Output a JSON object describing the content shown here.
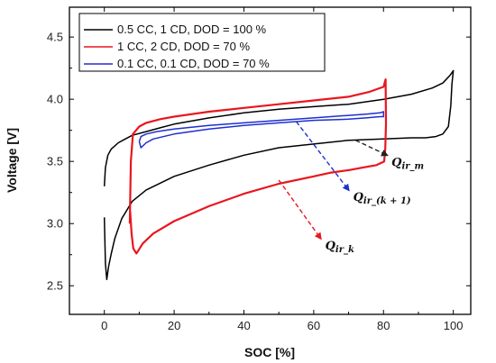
{
  "chart_data": {
    "type": "line",
    "xlabel": "SOC [%]",
    "ylabel": "Voltage [V]",
    "xlim": [
      -10,
      105
    ],
    "ylim": [
      2.27,
      4.74
    ],
    "x_ticks": [
      0,
      20,
      40,
      60,
      80,
      100
    ],
    "y_ticks": [
      2.5,
      3.0,
      3.5,
      4.0,
      4.5
    ],
    "grid": false,
    "legend_position": "top-left",
    "series": [
      {
        "name": "0.5 CC, 1 CD, DOD = 100 %",
        "color": "#000000",
        "x": [
          0,
          0.3,
          1,
          2,
          4,
          6,
          8,
          12,
          16,
          20,
          30,
          40,
          50,
          60,
          70,
          80,
          88,
          94,
          97,
          99,
          100,
          99.6,
          99.3,
          98.6,
          97,
          95,
          92,
          88,
          80,
          70,
          60,
          50,
          40,
          30,
          20,
          12,
          8,
          5,
          3,
          2,
          1.2,
          0.7,
          0.3,
          0
        ],
        "y": [
          3.3,
          3.45,
          3.55,
          3.6,
          3.65,
          3.68,
          3.71,
          3.74,
          3.77,
          3.8,
          3.85,
          3.89,
          3.92,
          3.94,
          3.96,
          4.0,
          4.04,
          4.09,
          4.13,
          4.19,
          4.23,
          4.12,
          3.95,
          3.78,
          3.72,
          3.7,
          3.69,
          3.69,
          3.68,
          3.67,
          3.64,
          3.61,
          3.55,
          3.47,
          3.38,
          3.27,
          3.18,
          3.04,
          2.88,
          2.76,
          2.65,
          2.55,
          2.68,
          3.05
        ]
      },
      {
        "name": "1 CC, 2 CD, DOD = 70 %",
        "color": "#e8161e",
        "x": [
          7.3,
          7.6,
          8.2,
          10,
          12,
          16,
          20,
          30,
          40,
          50,
          60,
          70,
          76,
          80,
          80.6,
          80.7,
          80.5,
          80.2,
          78,
          74,
          70,
          65,
          60,
          50,
          40,
          30,
          20,
          14,
          11,
          9.2,
          8.3,
          7.8,
          7.4,
          7.3
        ],
        "y": [
          3.0,
          3.5,
          3.72,
          3.78,
          3.81,
          3.84,
          3.86,
          3.9,
          3.93,
          3.96,
          3.99,
          4.02,
          4.06,
          4.1,
          4.16,
          3.8,
          3.6,
          3.5,
          3.47,
          3.45,
          3.43,
          3.41,
          3.38,
          3.32,
          3.24,
          3.14,
          3.02,
          2.92,
          2.84,
          2.76,
          2.8,
          2.92,
          3.1,
          3.0
        ]
      },
      {
        "name": "0.1 CC, 0.1 CD, DOD = 70 %",
        "color": "#1f2fcf",
        "x": [
          10,
          10.5,
          12,
          15,
          20,
          30,
          40,
          50,
          60,
          70,
          75,
          79,
          80,
          80,
          79,
          75,
          70,
          60,
          50,
          40,
          30,
          20,
          14,
          12,
          10.5,
          10
        ],
        "y": [
          3.66,
          3.7,
          3.72,
          3.74,
          3.76,
          3.79,
          3.81,
          3.83,
          3.85,
          3.87,
          3.88,
          3.89,
          3.9,
          3.86,
          3.86,
          3.85,
          3.84,
          3.83,
          3.81,
          3.79,
          3.76,
          3.72,
          3.68,
          3.65,
          3.61,
          3.66
        ]
      }
    ],
    "annotations": [
      {
        "main": "Q",
        "sub": "ir_m",
        "from": [
          72,
          3.67
        ],
        "to": [
          81,
          3.55
        ],
        "color": "#222222"
      },
      {
        "main": "Q",
        "sub": "ir_(k + 1)",
        "from": [
          55,
          3.82
        ],
        "to": [
          70,
          3.27
        ],
        "color": "#1f2fcf"
      },
      {
        "main": "Q",
        "sub": "ir_k",
        "from": [
          50,
          3.35
        ],
        "to": [
          62,
          2.88
        ],
        "color": "#e8161e"
      }
    ]
  }
}
